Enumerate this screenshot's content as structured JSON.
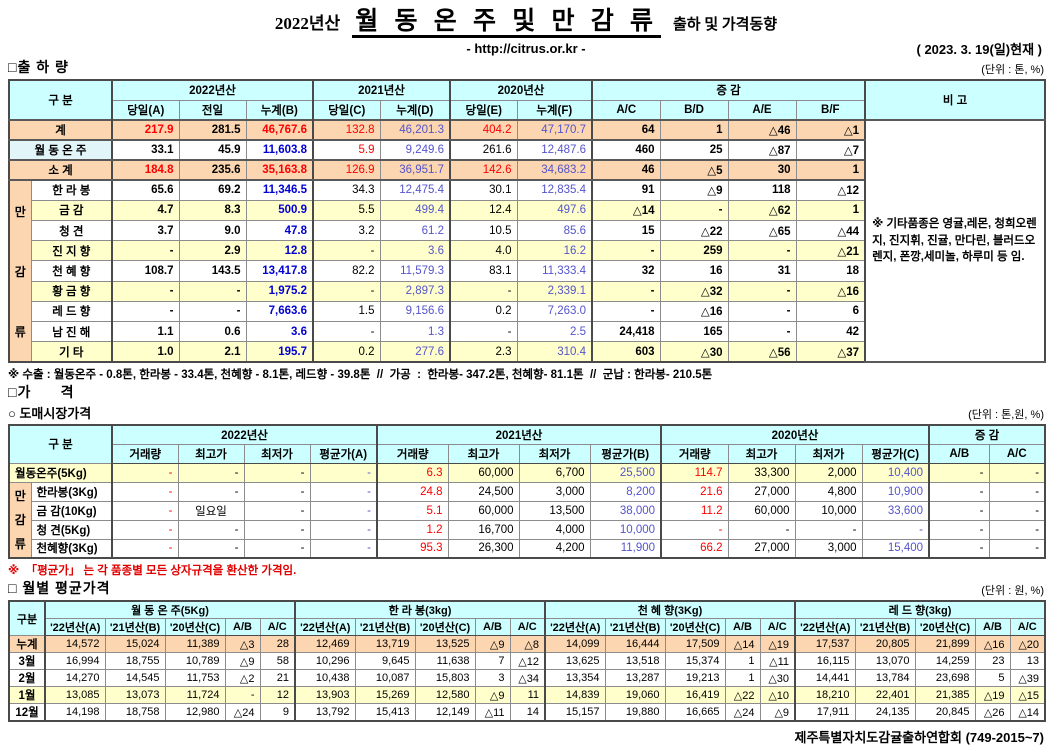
{
  "header": {
    "year": "2022년산",
    "title": "월 동 온 주 및 만 감 류",
    "suffix": "출하 및 가격동향",
    "url": "- http://citrus.or.kr -",
    "asof": "( 2023. 3. 19(일)현재 )"
  },
  "shipment": {
    "heading": "□출 하 량",
    "unit": "(단위 : 톤, %)",
    "gubun": "구      분",
    "year_groups": [
      "2022년산",
      "2021년산",
      "2020년산"
    ],
    "diff_header": "증      감",
    "bigo_header": "비 고",
    "sub_headers": [
      "당일(A)",
      "전일",
      "누계(B)",
      "당일(C)",
      "누계(D)",
      "당일(E)",
      "누계(F)",
      "A/C",
      "B/D",
      "A/E",
      "B/F"
    ],
    "group_label": [
      "만",
      "감",
      "류"
    ],
    "bigo_note": "※ 기타품종은 영귤,레몬, 청희오렌지, 진지휘, 진귤, 만다린, 블러드오렌지, 폰깡,세미놀, 하루미 등 임.",
    "footnote": "※ 수출 : 월동온주 - 0.8톤, 한라봉 - 33.4톤, 천혜향 - 8.1톤, 레드향 - 39.8톤  //  가공  :  한라봉- 347.2톤, 천혜향- 81.1톤  //  군납 : 한라봉- 210.5톤",
    "rows": [
      {
        "label": "계",
        "variant": "total",
        "zebra": false,
        "cells": [
          "217.9",
          "281.5",
          "46,767.6",
          "132.8",
          "46,201.3",
          "404.2",
          "47,170.7",
          "64",
          "1",
          "△46",
          "△1"
        ]
      },
      {
        "label": "월 동 온 주",
        "variant": "winter",
        "zebra": false,
        "cells": [
          "33.1",
          "45.9",
          "11,603.8",
          "5.9",
          "9,249.6",
          "261.6",
          "12,487.6",
          "460",
          "25",
          "△87",
          "△7"
        ]
      },
      {
        "label": "소    계",
        "variant": "subtotal",
        "zebra": false,
        "cells": [
          "184.8",
          "235.6",
          "35,163.8",
          "126.9",
          "36,951.7",
          "142.6",
          "34,683.2",
          "46",
          "△5",
          "30",
          "1"
        ]
      },
      {
        "label": "한 라 봉",
        "variant": "item",
        "zebra": false,
        "cells": [
          "65.6",
          "69.2",
          "11,346.5",
          "34.3",
          "12,475.4",
          "30.1",
          "12,835.4",
          "91",
          "△9",
          "118",
          "△12"
        ]
      },
      {
        "label": "금    감",
        "variant": "item",
        "zebra": true,
        "cells": [
          "4.7",
          "8.3",
          "500.9",
          "5.5",
          "499.4",
          "12.4",
          "497.6",
          "△14",
          "-",
          "△62",
          "1"
        ]
      },
      {
        "label": "청    견",
        "variant": "item",
        "zebra": false,
        "cells": [
          "3.7",
          "9.0",
          "47.8",
          "3.2",
          "61.2",
          "10.5",
          "85.6",
          "15",
          "△22",
          "△65",
          "△44"
        ]
      },
      {
        "label": "진 지 향",
        "variant": "item",
        "zebra": true,
        "cells": [
          "-",
          "2.9",
          "12.8",
          "-",
          "3.6",
          "4.0",
          "16.2",
          "-",
          "259",
          "-",
          "△21"
        ]
      },
      {
        "label": "천 혜 향",
        "variant": "item",
        "zebra": false,
        "cells": [
          "108.7",
          "143.5",
          "13,417.8",
          "82.2",
          "11,579.3",
          "83.1",
          "11,333.4",
          "32",
          "16",
          "31",
          "18"
        ]
      },
      {
        "label": "황 금 향",
        "variant": "item",
        "zebra": true,
        "cells": [
          "-",
          "-",
          "1,975.2",
          "-",
          "2,897.3",
          "-",
          "2,339.1",
          "-",
          "△32",
          "-",
          "△16"
        ]
      },
      {
        "label": "레 드 향",
        "variant": "item",
        "zebra": false,
        "cells": [
          "-",
          "-",
          "7,663.6",
          "1.5",
          "9,156.6",
          "0.2",
          "7,263.0",
          "-",
          "△16",
          "-",
          "6"
        ]
      },
      {
        "label": "남 진 해",
        "variant": "item",
        "zebra": false,
        "cells": [
          "1.1",
          "0.6",
          "3.6",
          "-",
          "1.3",
          "-",
          "2.5",
          "24,418",
          "165",
          "-",
          "42"
        ]
      },
      {
        "label": "기    타",
        "variant": "item",
        "zebra": true,
        "cells": [
          "1.0",
          "2.1",
          "195.7",
          "0.2",
          "277.6",
          "2.3",
          "310.4",
          "603",
          "△30",
          "△56",
          "△37"
        ]
      }
    ]
  },
  "price": {
    "heading": "□가      격",
    "subheading": "○ 도매시장가격",
    "unit": "(단위 : 톤,원, %)",
    "gubun": "구      분",
    "year_groups": [
      "2022년산",
      "2021년산",
      "2020년산"
    ],
    "diff_header": "증  감",
    "sub_headers": [
      "거래량",
      "최고가",
      "최저가",
      "평균가(A)",
      "거래량",
      "최고가",
      "최저가",
      "평균가(B)",
      "거래량",
      "최고가",
      "최저가",
      "평균가(C)",
      "A/B",
      "A/C"
    ],
    "group_label": [
      "만",
      "감",
      "류"
    ],
    "footnote": "※  「평균가」 는 각 품종별 모든 상자규격을 환산한 가격임.",
    "rows": [
      {
        "label": "월동온주(5Kg)",
        "variant": "winter",
        "cells": [
          "-",
          "-",
          "-",
          "-",
          "6.3",
          "60,000",
          "6,700",
          "25,500",
          "114.7",
          "33,300",
          "2,000",
          "10,400",
          "-",
          "-"
        ]
      },
      {
        "label": "한라봉(3Kg)",
        "variant": "item",
        "cells": [
          "-",
          "-",
          "-",
          "-",
          "24.8",
          "24,500",
          "3,000",
          "8,200",
          "21.6",
          "27,000",
          "4,800",
          "10,900",
          "-",
          "-"
        ]
      },
      {
        "label": "금 감(10Kg)",
        "variant": "item",
        "cells": [
          "-",
          "일요일",
          "-",
          "-",
          "5.1",
          "60,000",
          "13,500",
          "38,000",
          "11.2",
          "60,000",
          "10,000",
          "33,600",
          "-",
          "-"
        ]
      },
      {
        "label": "청   견(5Kg)",
        "variant": "item",
        "cells": [
          "-",
          "-",
          "-",
          "-",
          "1.2",
          "16,700",
          "4,000",
          "10,000",
          "-",
          "-",
          "-",
          "-",
          "-",
          "-"
        ]
      },
      {
        "label": "천혜향(3Kg)",
        "variant": "item",
        "cells": [
          "-",
          "-",
          "-",
          "-",
          "95.3",
          "26,300",
          "4,200",
          "11,900",
          "66.2",
          "27,000",
          "3,000",
          "15,400",
          "-",
          "-"
        ]
      }
    ]
  },
  "monthly": {
    "heading": "□ 월별 평균가격",
    "unit": "(단위 : 원, %)",
    "gubun": "구분",
    "groups": [
      "월 동 온 주(5Kg)",
      "한 라 봉(3kg)",
      "천 혜 향(3Kg)",
      "레 드 향(3kg)"
    ],
    "sub_headers": [
      "'22년산(A)",
      "'21년산(B)",
      "'20년산(C)",
      "A/B",
      "A/C"
    ],
    "rows": [
      {
        "label": "누계",
        "variant": "total",
        "cells": [
          "14,572",
          "15,024",
          "11,389",
          "△3",
          "28",
          "12,469",
          "13,719",
          "13,525",
          "△9",
          "△8",
          "14,099",
          "16,444",
          "17,509",
          "△14",
          "△19",
          "17,537",
          "20,805",
          "21,899",
          "△16",
          "△20"
        ]
      },
      {
        "label": "3월",
        "variant": "plain",
        "cells": [
          "16,994",
          "18,755",
          "10,789",
          "△9",
          "58",
          "10,296",
          "9,645",
          "11,638",
          "7",
          "△12",
          "13,625",
          "13,518",
          "15,374",
          "1",
          "△11",
          "16,115",
          "13,070",
          "14,259",
          "23",
          "13"
        ]
      },
      {
        "label": "2월",
        "variant": "plain",
        "cells": [
          "14,270",
          "14,545",
          "11,753",
          "△2",
          "21",
          "10,438",
          "10,087",
          "15,803",
          "3",
          "△34",
          "13,354",
          "13,287",
          "19,213",
          "1",
          "△30",
          "14,441",
          "13,784",
          "23,698",
          "5",
          "△39"
        ]
      },
      {
        "label": "1월",
        "variant": "alt",
        "cells": [
          "13,085",
          "13,073",
          "11,724",
          "-",
          "12",
          "13,903",
          "15,269",
          "12,580",
          "△9",
          "11",
          "14,839",
          "19,060",
          "16,419",
          "△22",
          "△10",
          "18,210",
          "22,401",
          "21,385",
          "△19",
          "△15"
        ]
      },
      {
        "label": "12월",
        "variant": "plain",
        "cells": [
          "14,198",
          "18,758",
          "12,980",
          "△24",
          "9",
          "13,792",
          "15,413",
          "12,149",
          "△11",
          "14",
          "15,157",
          "19,880",
          "16,665",
          "△24",
          "△9",
          "17,911",
          "24,135",
          "20,845",
          "△26",
          "△14"
        ]
      }
    ]
  },
  "footer": "제주특별자치도감귤출하연합회 (749-2015~7)",
  "colors": {
    "header_bg": "#CCFFFF",
    "total_row_bg": "#FBD6B1",
    "alt_row_bg": "#FFFFCC",
    "winter_label_bg": "#E2F6F9",
    "daily_value_red": "#FF0000",
    "cumulative_blue": "#0000D4",
    "prev_year_blue": "#5454CC"
  }
}
